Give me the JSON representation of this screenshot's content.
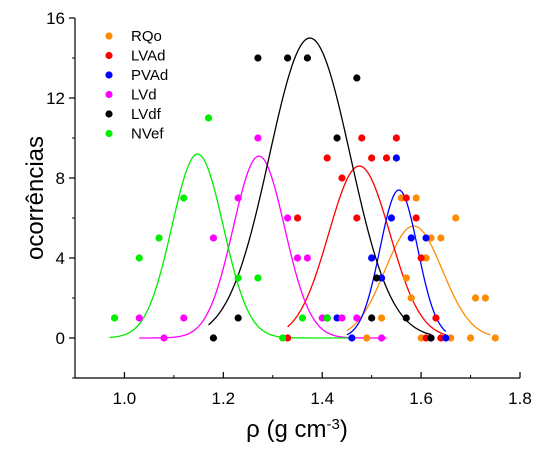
{
  "chart_data": {
    "type": "scatter",
    "title": "",
    "xlabel": "ρ (g cm-3)",
    "xlabel_main": "ρ (g cm",
    "xlabel_sup": "-3",
    "xlabel_end": ")",
    "ylabel": "ocorrências",
    "xlim": [
      0.9,
      1.8
    ],
    "ylim": [
      -2,
      16
    ],
    "xticks": [
      1.0,
      1.2,
      1.4,
      1.6,
      1.8
    ],
    "xtick_labels": [
      "1.0",
      "1.2",
      "1.4",
      "1.6",
      "1.8"
    ],
    "yticks": [
      0,
      4,
      8,
      12,
      16
    ],
    "ytick_labels": [
      "0",
      "4",
      "8",
      "12",
      "16"
    ],
    "grid": false,
    "legend_position": "top-left",
    "series": [
      {
        "name": "RQo",
        "color": "#ff8c00",
        "points": [
          [
            1.49,
            0
          ],
          [
            1.52,
            1
          ],
          [
            1.56,
            7
          ],
          [
            1.57,
            3
          ],
          [
            1.58,
            2
          ],
          [
            1.59,
            7
          ],
          [
            1.6,
            0
          ],
          [
            1.61,
            4
          ],
          [
            1.62,
            5
          ],
          [
            1.64,
            5
          ],
          [
            1.66,
            0
          ],
          [
            1.67,
            6
          ],
          [
            1.7,
            0
          ],
          [
            1.71,
            2
          ],
          [
            1.73,
            2
          ],
          [
            1.75,
            0
          ]
        ],
        "fit": {
          "mu": 1.585,
          "sigma": 0.058,
          "amp": 5.6,
          "xmin": 1.45,
          "xmax": 1.74
        }
      },
      {
        "name": "LVAd",
        "color": "#ff0000",
        "points": [
          [
            1.33,
            0
          ],
          [
            1.35,
            6
          ],
          [
            1.41,
            9
          ],
          [
            1.44,
            8
          ],
          [
            1.47,
            6
          ],
          [
            1.48,
            10
          ],
          [
            1.5,
            9
          ],
          [
            1.53,
            9
          ],
          [
            1.55,
            10
          ],
          [
            1.57,
            7
          ],
          [
            1.59,
            6
          ],
          [
            1.6,
            4
          ],
          [
            1.61,
            0
          ],
          [
            1.63,
            1
          ],
          [
            1.64,
            0
          ]
        ],
        "fit": {
          "mu": 1.475,
          "sigma": 0.062,
          "amp": 8.6,
          "xmin": 1.33,
          "xmax": 1.65
        }
      },
      {
        "name": "PVAd",
        "color": "#0000ff",
        "points": [
          [
            1.41,
            1
          ],
          [
            1.43,
            1
          ],
          [
            1.46,
            0
          ],
          [
            1.5,
            4
          ],
          [
            1.52,
            3
          ],
          [
            1.54,
            6
          ],
          [
            1.55,
            9
          ],
          [
            1.58,
            5
          ],
          [
            1.61,
            5
          ],
          [
            1.62,
            0
          ],
          [
            1.65,
            0
          ]
        ],
        "fit": {
          "mu": 1.555,
          "sigma": 0.038,
          "amp": 7.4,
          "xmin": 1.45,
          "xmax": 1.65
        }
      },
      {
        "name": "LVd",
        "color": "#ff00ff",
        "points": [
          [
            1.03,
            1
          ],
          [
            1.08,
            0
          ],
          [
            1.12,
            1
          ],
          [
            1.18,
            5
          ],
          [
            1.23,
            7
          ],
          [
            1.27,
            10
          ],
          [
            1.33,
            6
          ],
          [
            1.35,
            4
          ],
          [
            1.37,
            4
          ],
          [
            1.4,
            1
          ],
          [
            1.44,
            1
          ],
          [
            1.47,
            1
          ],
          [
            1.52,
            0
          ]
        ],
        "fit": {
          "mu": 1.272,
          "sigma": 0.052,
          "amp": 9.1,
          "xmin": 1.03,
          "xmax": 1.53
        }
      },
      {
        "name": "LVdf",
        "color": "#000000",
        "points": [
          [
            1.18,
            0
          ],
          [
            1.23,
            1
          ],
          [
            1.27,
            14
          ],
          [
            1.33,
            14
          ],
          [
            1.37,
            14
          ],
          [
            1.41,
            1
          ],
          [
            1.43,
            10
          ],
          [
            1.47,
            13
          ],
          [
            1.5,
            1
          ],
          [
            1.51,
            3
          ],
          [
            1.57,
            1
          ],
          [
            1.62,
            0
          ]
        ],
        "fit": {
          "mu": 1.375,
          "sigma": 0.082,
          "amp": 15.0,
          "xmin": 1.17,
          "xmax": 1.62
        }
      },
      {
        "name": "NVef",
        "color": "#00ee00",
        "points": [
          [
            0.98,
            1
          ],
          [
            1.03,
            4
          ],
          [
            1.07,
            5
          ],
          [
            1.12,
            7
          ],
          [
            1.17,
            11
          ],
          [
            1.23,
            3
          ],
          [
            1.27,
            3
          ],
          [
            1.32,
            0
          ],
          [
            1.36,
            1
          ],
          [
            1.41,
            1
          ]
        ],
        "fit": {
          "mu": 1.148,
          "sigma": 0.052,
          "amp": 9.2,
          "xmin": 0.97,
          "xmax": 1.46
        }
      }
    ]
  }
}
